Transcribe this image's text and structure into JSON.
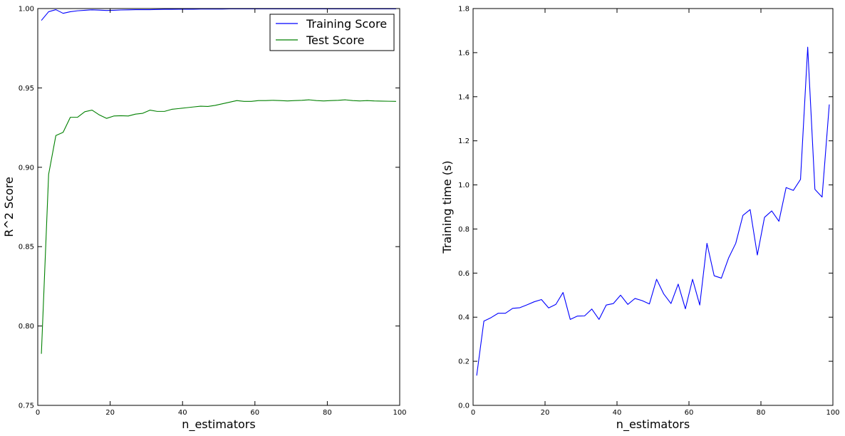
{
  "chart_data": [
    {
      "type": "line",
      "title": "",
      "xlabel": "n_estimators",
      "ylabel": "R^2 Score",
      "xlim": [
        0,
        100
      ],
      "ylim": [
        0.75,
        1.0
      ],
      "xticks": [
        0,
        20,
        40,
        60,
        80,
        100
      ],
      "xtick_labels": [
        "0",
        "20",
        "40",
        "60",
        "80",
        "100"
      ],
      "yticks": [
        0.75,
        0.8,
        0.85,
        0.9,
        0.95,
        1.0
      ],
      "ytick_labels": [
        "0.75",
        "0.80",
        "0.85",
        "0.90",
        "0.95",
        "1.00"
      ],
      "grid": false,
      "legend": "top-right",
      "x": [
        1,
        3,
        5,
        7,
        9,
        11,
        13,
        15,
        17,
        19,
        21,
        23,
        25,
        27,
        29,
        31,
        33,
        35,
        37,
        39,
        41,
        43,
        45,
        47,
        49,
        51,
        53,
        55,
        57,
        59,
        61,
        63,
        65,
        67,
        69,
        71,
        73,
        75,
        77,
        79,
        81,
        83,
        85,
        87,
        89,
        91,
        93,
        95,
        97,
        99
      ],
      "series": [
        {
          "name": "Training Score",
          "color": "#0000ff",
          "values": [
            0.9925,
            0.998,
            0.9993,
            0.997,
            0.998,
            0.9986,
            0.9989,
            0.9992,
            0.999,
            0.9988,
            0.9989,
            0.9991,
            0.9992,
            0.9993,
            0.9993,
            0.9993,
            0.9994,
            0.9995,
            0.9995,
            0.9996,
            0.9996,
            0.9996,
            0.9997,
            0.9997,
            0.9997,
            0.9997,
            0.9998,
            0.9998,
            0.9998,
            0.9998,
            0.9998,
            0.9998,
            0.9998,
            0.9998,
            0.9998,
            0.9998,
            0.9998,
            0.9998,
            0.9998,
            0.9998,
            0.9998,
            0.9998,
            0.9998,
            0.9998,
            0.9998,
            0.9998,
            0.9998,
            0.9998,
            0.9998,
            0.9998
          ]
        },
        {
          "name": "Test Score",
          "color": "#008000",
          "values": [
            0.7825,
            0.8955,
            0.92,
            0.922,
            0.9315,
            0.9315,
            0.935,
            0.936,
            0.933,
            0.9308,
            0.9323,
            0.9325,
            0.9323,
            0.9335,
            0.934,
            0.936,
            0.9352,
            0.9352,
            0.9365,
            0.937,
            0.9375,
            0.938,
            0.9385,
            0.9383,
            0.939,
            0.94,
            0.941,
            0.942,
            0.9415,
            0.9415,
            0.942,
            0.942,
            0.9422,
            0.942,
            0.9418,
            0.942,
            0.9422,
            0.9425,
            0.942,
            0.9418,
            0.942,
            0.9422,
            0.9425,
            0.942,
            0.9418,
            0.942,
            0.9418,
            0.9417,
            0.9416,
            0.9415
          ]
        }
      ]
    },
    {
      "type": "line",
      "title": "",
      "xlabel": "n_estimators",
      "ylabel": "Training time (s)",
      "xlim": [
        0,
        100
      ],
      "ylim": [
        0.0,
        1.8
      ],
      "xticks": [
        0,
        20,
        40,
        60,
        80,
        100
      ],
      "xtick_labels": [
        "0",
        "20",
        "40",
        "60",
        "80",
        "100"
      ],
      "yticks": [
        0.0,
        0.2,
        0.4,
        0.6,
        0.8,
        1.0,
        1.2,
        1.4,
        1.6,
        1.8
      ],
      "ytick_labels": [
        "0.0",
        "0.2",
        "0.4",
        "0.6",
        "0.8",
        "1.0",
        "1.2",
        "1.4",
        "1.6",
        "1.8"
      ],
      "grid": false,
      "x": [
        1,
        3,
        5,
        7,
        9,
        11,
        13,
        15,
        17,
        19,
        21,
        23,
        25,
        27,
        29,
        31,
        33,
        35,
        37,
        39,
        41,
        43,
        45,
        47,
        49,
        51,
        53,
        55,
        57,
        59,
        61,
        63,
        65,
        67,
        69,
        71,
        73,
        75,
        77,
        79,
        81,
        83,
        85,
        87,
        89,
        91,
        93,
        95,
        97,
        99
      ],
      "series": [
        {
          "color": "#0000ff",
          "values": [
            0.135,
            0.382,
            0.398,
            0.418,
            0.418,
            0.44,
            0.443,
            0.456,
            0.47,
            0.48,
            0.442,
            0.458,
            0.512,
            0.39,
            0.405,
            0.406,
            0.437,
            0.39,
            0.455,
            0.462,
            0.5,
            0.458,
            0.485,
            0.475,
            0.46,
            0.572,
            0.505,
            0.462,
            0.55,
            0.438,
            0.572,
            0.455,
            0.735,
            0.588,
            0.577,
            0.668,
            0.735,
            0.862,
            0.888,
            0.682,
            0.853,
            0.882,
            0.835,
            0.988,
            0.975,
            1.025,
            1.625,
            0.98,
            0.945,
            1.365
          ]
        }
      ]
    }
  ]
}
